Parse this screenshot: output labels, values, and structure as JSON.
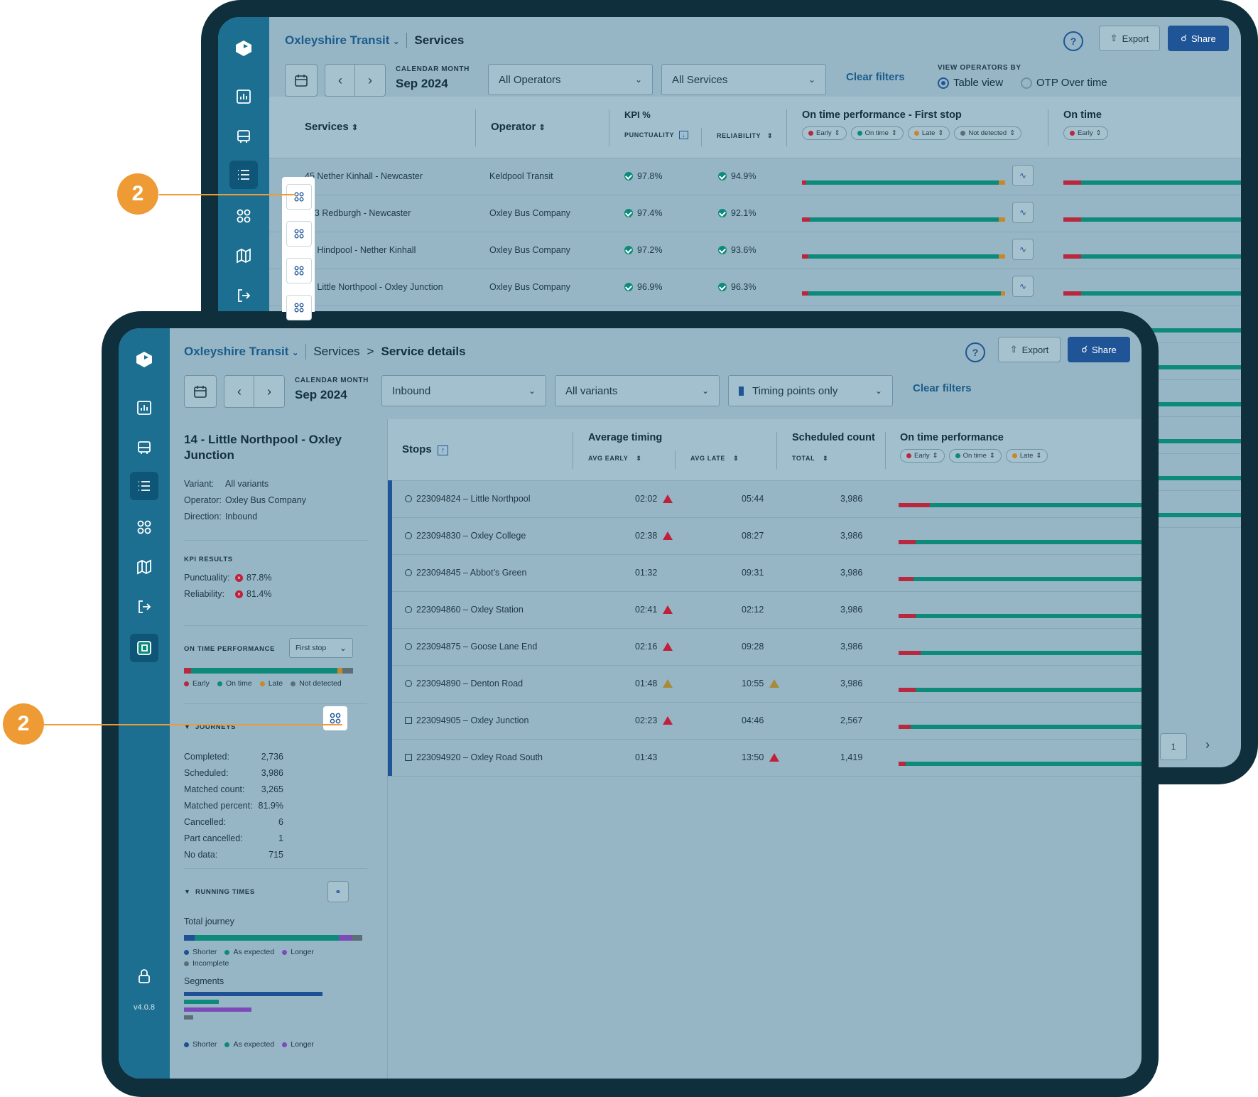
{
  "colors": {
    "early": "#b8283f",
    "ontime": "#0d8a7a",
    "late": "#c8872a",
    "notdetected": "#5c6f78",
    "shorter": "#1f4f94",
    "asexpected": "#0d8a7a",
    "longer": "#7c4bb8",
    "incomplete": "#5c6f78",
    "accent": "#1f5597",
    "callout": "#ee9b35"
  },
  "callouts": {
    "one": "2",
    "two": "2"
  },
  "back": {
    "org": "Oxleyshire Transit",
    "page": "Services",
    "help_icon": "help-icon",
    "export": "Export",
    "share": "Share",
    "month_cap": "CALENDAR MONTH",
    "month": "Sep 2024",
    "operators": "All Operators",
    "services": "All Services",
    "clear": "Clear filters",
    "view_cap": "VIEW OPERATORS BY",
    "view_table": "Table view",
    "view_otp": "OTP Over time",
    "headers": {
      "services": "Services",
      "operator": "Operator",
      "kpi": "KPI %",
      "punctuality": "PUNCTUALITY",
      "reliability": "RELIABILITY",
      "otp_first": "On time performance - First stop",
      "otp_next": "On time"
    },
    "pills": {
      "early": "Early",
      "ontime": "On time",
      "late": "Late",
      "notdetected": "Not detected"
    },
    "rows": [
      {
        "service": "45 Nether Kinhall - Newcaster",
        "operator": "Keldpool Transit",
        "punctuality": "97.8%",
        "reliability": "94.9%",
        "otp": [
          0.02,
          0.95,
          0.03
        ]
      },
      {
        "service": "483 Redburgh - Newcaster",
        "operator": "Oxley Bus Company",
        "punctuality": "97.4%",
        "reliability": "92.1%",
        "otp": [
          0.04,
          0.93,
          0.03
        ]
      },
      {
        "service": "41 Hindpool - Nether Kinhall",
        "operator": "Oxley Bus Company",
        "punctuality": "97.2%",
        "reliability": "93.6%",
        "otp": [
          0.03,
          0.94,
          0.03
        ]
      },
      {
        "service": "14 Little Northpool - Oxley Junction",
        "operator": "Oxley Bus Company",
        "punctuality": "96.9%",
        "reliability": "96.3%",
        "otp": [
          0.03,
          0.95,
          0.02
        ]
      }
    ],
    "page_num": "1"
  },
  "front": {
    "org": "Oxleyshire Transit",
    "crumb_services": "Services",
    "crumb_sep": ">",
    "crumb_details": "Service details",
    "export": "Export",
    "share": "Share",
    "month_cap": "CALENDAR MONTH",
    "month": "Sep 2024",
    "direction": "Inbound",
    "variants": "All variants",
    "timing": "Timing points only",
    "clear": "Clear filters",
    "version": "v4.0.8",
    "service_title": "14 - Little Northpool - Oxley Junction",
    "meta": [
      {
        "k": "Variant:",
        "v": "All variants"
      },
      {
        "k": "Operator:",
        "v": "Oxley Bus Company"
      },
      {
        "k": "Direction:",
        "v": "Inbound"
      }
    ],
    "kpi_cap": "KPI RESULTS",
    "kpi": [
      {
        "k": "Punctuality:",
        "v": "87.8%"
      },
      {
        "k": "Reliability:",
        "v": "81.4%"
      }
    ],
    "otp_cap": "ON TIME PERFORMANCE",
    "otp_select": "First stop",
    "otp_bar": [
      0.04,
      0.83,
      0.03,
      0.06
    ],
    "otp_legend": {
      "early": "Early",
      "ontime": "On time",
      "late": "Late",
      "notdetected": "Not detected"
    },
    "journeys_cap": "JOURNEYS",
    "journeys": [
      {
        "k": "Completed:",
        "v": "2,736"
      },
      {
        "k": "Scheduled:",
        "v": "3,986"
      },
      {
        "k": "Matched count:",
        "v": "3,265"
      },
      {
        "k": "Matched percent:",
        "v": "81.9%"
      },
      {
        "k": "Cancelled:",
        "v": "6"
      },
      {
        "k": "Part cancelled:",
        "v": "1"
      },
      {
        "k": "No data:",
        "v": "715"
      }
    ],
    "running_cap": "RUNNING TIMES",
    "total_journey": "Total journey",
    "running_bar": [
      0.06,
      0.79,
      0.07,
      0.06
    ],
    "running_legend": {
      "shorter": "Shorter",
      "asexpected": "As expected",
      "longer": "Longer",
      "incomplete": "Incomplete"
    },
    "segments": "Segments",
    "segment_bars": [
      {
        "c": "shorter",
        "v": 0.76
      },
      {
        "c": "asexpected",
        "v": 0.19
      },
      {
        "c": "longer",
        "v": 0.37
      },
      {
        "c": "incomplete",
        "v": 0.05
      }
    ],
    "headers": {
      "stops": "Stops",
      "avg_timing": "Average timing",
      "avg_early": "AVG EARLY",
      "avg_late": "AVG LATE",
      "sched": "Scheduled count",
      "total": "TOTAL",
      "otp": "On time performance"
    },
    "pills": {
      "early": "Early",
      "ontime": "On time",
      "late": "Late"
    },
    "stops": [
      {
        "stop": "223094824 – Little Northpool",
        "early": "02:02",
        "ew": "r",
        "late": "05:44",
        "lw": "",
        "count": "3,986",
        "otp": [
          0.13
        ]
      },
      {
        "stop": "223094830 – Oxley College",
        "early": "02:38",
        "ew": "r",
        "late": "08:27",
        "lw": "",
        "count": "3,986",
        "otp": [
          0.07
        ]
      },
      {
        "stop": "223094845 – Abbot’s Green",
        "early": "01:32",
        "ew": "",
        "late": "09:31",
        "lw": "",
        "count": "3,986",
        "otp": [
          0.06
        ]
      },
      {
        "stop": "223094860 – Oxley Station",
        "early": "02:41",
        "ew": "r",
        "late": "02:12",
        "lw": "",
        "count": "3,986",
        "otp": [
          0.07
        ]
      },
      {
        "stop": "223094875 – Goose Lane End",
        "early": "02:16",
        "ew": "r",
        "late": "09:28",
        "lw": "",
        "count": "3,986",
        "otp": [
          0.09
        ]
      },
      {
        "stop": "223094890 – Denton Road",
        "early": "01:48",
        "ew": "o",
        "late": "10:55",
        "lw": "o",
        "count": "3,986",
        "otp": [
          0.07
        ]
      },
      {
        "stop": "223094905 – Oxley Junction",
        "early": "02:23",
        "ew": "r",
        "late": "04:46",
        "lw": "",
        "count": "2,567",
        "otp": [
          0.05
        ]
      },
      {
        "stop": "223094920 – Oxley Road South",
        "early": "01:43",
        "ew": "",
        "late": "13:50",
        "lw": "r",
        "count": "1,419",
        "otp": [
          0.03
        ]
      }
    ]
  }
}
